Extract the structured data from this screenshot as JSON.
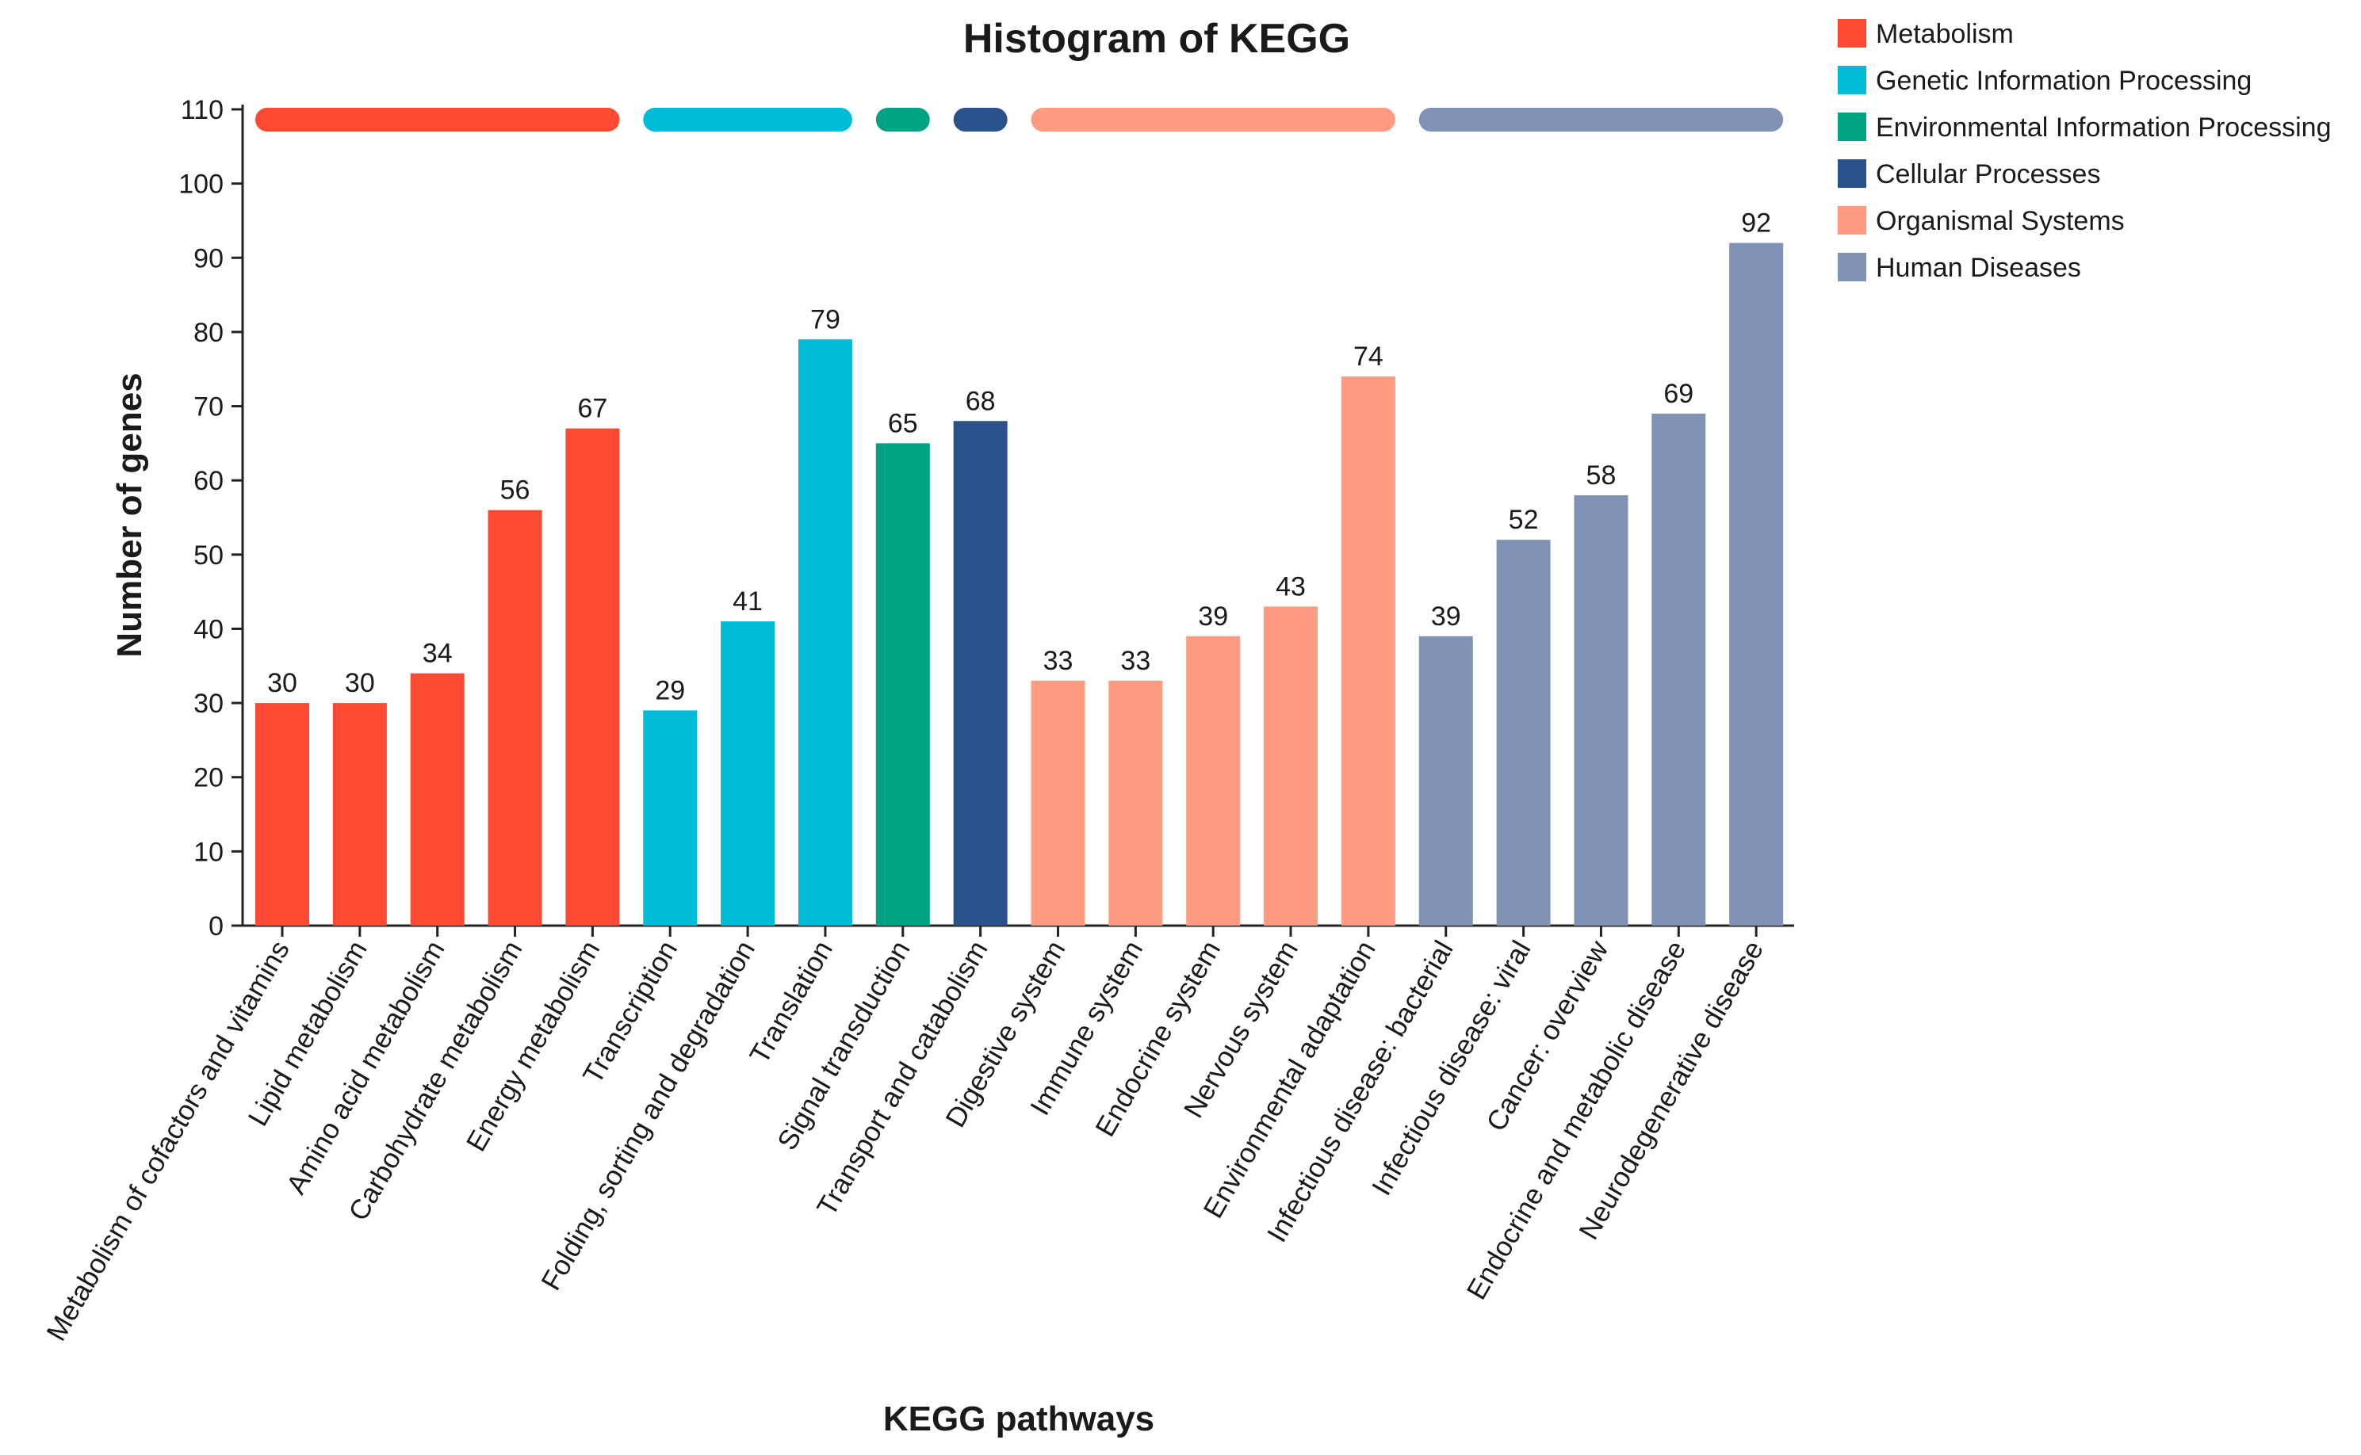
{
  "chart_data": {
    "type": "bar",
    "title": "Histogram of KEGG",
    "xlabel": "KEGG pathways",
    "ylabel": "Number of genes",
    "ylim": [
      0,
      110
    ],
    "yticks": [
      0,
      10,
      20,
      30,
      40,
      50,
      60,
      70,
      80,
      90,
      100,
      110
    ],
    "grid": false,
    "legend_position": "top-right",
    "groups": [
      {
        "name": "Metabolism",
        "color": "#FF4A33"
      },
      {
        "name": "Genetic Information Processing",
        "color": "#00BCD9"
      },
      {
        "name": "Environmental Information Processing",
        "color": "#00A283"
      },
      {
        "name": "Cellular Processes",
        "color": "#2A5189"
      },
      {
        "name": "Organismal Systems",
        "color": "#FF9B80"
      },
      {
        "name": "Human Diseases",
        "color": "#8193B4"
      }
    ],
    "categories": [
      "Metabolism of cofactors and vitamins",
      "Lipid metabolism",
      "Amino acid metabolism",
      "Carbohydrate metabolism",
      "Energy metabolism",
      "Transcription",
      "Folding, sorting and degradation",
      "Translation",
      "Signal transduction",
      "Transport and catabolism",
      "Digestive system",
      "Immune system",
      "Endocrine system",
      "Nervous system",
      "Environmental adaptation",
      "Infectious disease: bacterial",
      "Infectious disease: viral",
      "Cancer: overview",
      "Endocrine and metabolic disease",
      "Neurodegenerative disease"
    ],
    "values": [
      30,
      30,
      34,
      56,
      67,
      29,
      41,
      79,
      65,
      68,
      33,
      33,
      39,
      43,
      74,
      39,
      52,
      58,
      69,
      92
    ],
    "category_group": [
      0,
      0,
      0,
      0,
      0,
      1,
      1,
      1,
      2,
      3,
      4,
      4,
      4,
      4,
      4,
      5,
      5,
      5,
      5,
      5
    ]
  }
}
